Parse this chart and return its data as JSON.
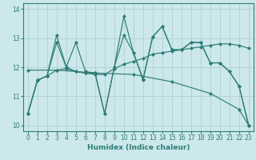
{
  "xlabel": "Humidex (Indice chaleur)",
  "bg_color": "#cce8ec",
  "line_color": "#2e7d74",
  "grid_color": "#b0cfd4",
  "xlim": [
    -0.5,
    23.5
  ],
  "ylim": [
    9.8,
    14.2
  ],
  "yticks": [
    10,
    11,
    12,
    13,
    14
  ],
  "xticks": [
    0,
    1,
    2,
    3,
    4,
    5,
    6,
    7,
    8,
    9,
    10,
    11,
    12,
    13,
    14,
    15,
    16,
    17,
    18,
    19,
    20,
    21,
    22,
    23
  ],
  "lines": [
    {
      "x": [
        0,
        1,
        2,
        3,
        4,
        5,
        6,
        7,
        8,
        9,
        10,
        11,
        12,
        13,
        14,
        15,
        16,
        17,
        18,
        19,
        20,
        21,
        22,
        23
      ],
      "y": [
        10.4,
        11.55,
        11.7,
        12.85,
        12.0,
        11.85,
        11.8,
        11.8,
        10.4,
        12.0,
        13.75,
        12.5,
        11.55,
        13.05,
        13.4,
        12.6,
        12.6,
        12.85,
        12.85,
        12.15,
        12.15,
        11.85,
        11.35,
        10.0
      ]
    },
    {
      "x": [
        0,
        1,
        2,
        3,
        4,
        5,
        6,
        7,
        8,
        9,
        10,
        11,
        12,
        13,
        14,
        15,
        16,
        17,
        18,
        19,
        20,
        21,
        22,
        23
      ],
      "y": [
        10.4,
        11.55,
        11.7,
        11.9,
        11.95,
        11.85,
        11.8,
        11.75,
        11.75,
        11.95,
        12.1,
        12.2,
        12.3,
        12.45,
        12.5,
        12.55,
        12.6,
        12.65,
        12.7,
        12.75,
        12.8,
        12.8,
        12.75,
        12.65
      ]
    },
    {
      "x": [
        0,
        1,
        2,
        3,
        4,
        5,
        6,
        7,
        8,
        9,
        10,
        11,
        12,
        13,
        14,
        15,
        16,
        17,
        18,
        19,
        20,
        21,
        22,
        23
      ],
      "y": [
        10.4,
        11.55,
        11.7,
        13.1,
        12.0,
        12.85,
        11.85,
        11.8,
        10.4,
        12.0,
        13.1,
        12.5,
        11.6,
        13.05,
        13.4,
        12.6,
        12.6,
        12.85,
        12.85,
        12.15,
        12.15,
        11.85,
        11.35,
        10.0
      ]
    },
    {
      "x": [
        0,
        3,
        7,
        11,
        15,
        19,
        22,
        23
      ],
      "y": [
        11.9,
        11.9,
        11.8,
        11.75,
        11.5,
        11.1,
        10.55,
        10.0
      ]
    }
  ]
}
